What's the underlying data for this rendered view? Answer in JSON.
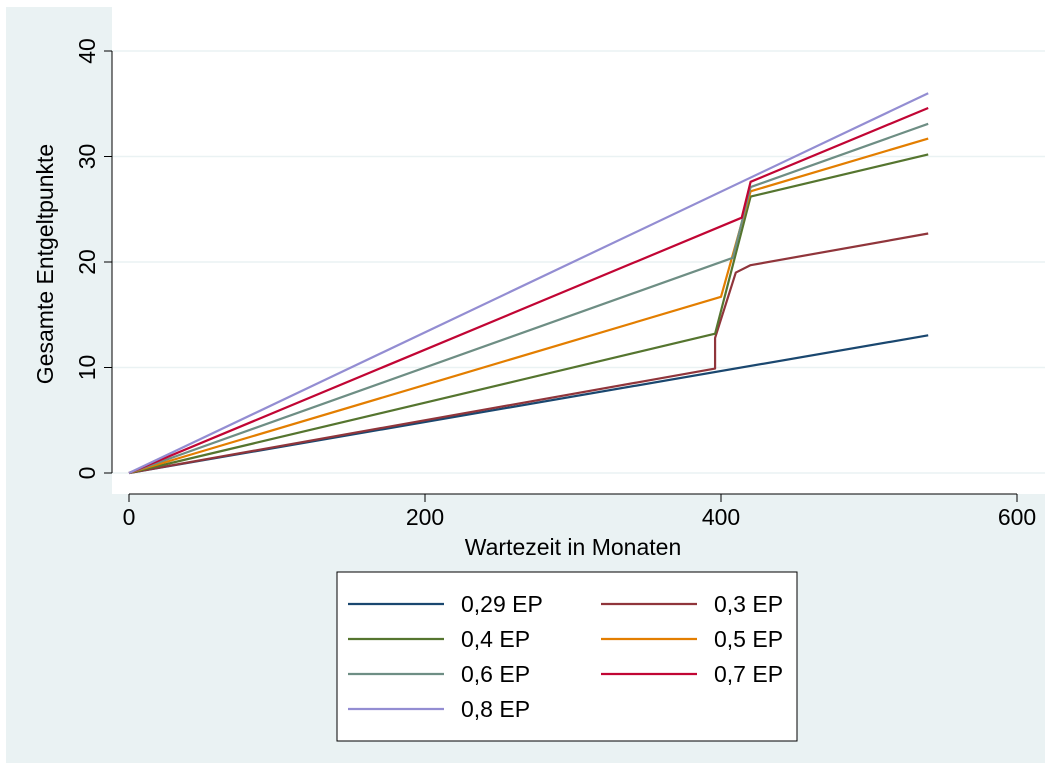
{
  "chart_data": {
    "type": "line",
    "title": "",
    "xlabel": "Wartezeit in Monaten",
    "ylabel": "Gesamte Entgeltpunkte",
    "xlim": [
      0,
      600
    ],
    "ylim": [
      0,
      40
    ],
    "xticks": [
      0,
      200,
      400,
      600
    ],
    "yticks": [
      0,
      10,
      20,
      30,
      40
    ],
    "grid": true,
    "legend_position": "bottom",
    "series": [
      {
        "name": "0,29 EP",
        "color": "#1a476f",
        "x": [
          0,
          540
        ],
        "y": [
          0,
          13.05
        ]
      },
      {
        "name": "0,3 EP",
        "color": "#90353b",
        "x": [
          0,
          396,
          396,
          410,
          420,
          540
        ],
        "y": [
          0,
          9.9,
          12.8,
          19.0,
          19.7,
          22.7
        ]
      },
      {
        "name": "0,4 EP",
        "color": "#55752f",
        "x": [
          0,
          396,
          420,
          540
        ],
        "y": [
          0,
          13.2,
          26.2,
          30.2
        ]
      },
      {
        "name": "0,5 EP",
        "color": "#e37e00",
        "x": [
          0,
          400,
          420,
          540
        ],
        "y": [
          0,
          16.7,
          26.7,
          31.7
        ]
      },
      {
        "name": "0,6 EP",
        "color": "#6e8e84",
        "x": [
          0,
          408,
          420,
          540
        ],
        "y": [
          0,
          20.4,
          27.1,
          33.1
        ]
      },
      {
        "name": "0,7 EP",
        "color": "#c10534",
        "x": [
          0,
          414,
          420,
          540
        ],
        "y": [
          0,
          24.2,
          27.6,
          34.6
        ]
      },
      {
        "name": "0,8 EP",
        "color": "#938dd2",
        "x": [
          0,
          540
        ],
        "y": [
          0,
          36.0
        ]
      }
    ]
  }
}
